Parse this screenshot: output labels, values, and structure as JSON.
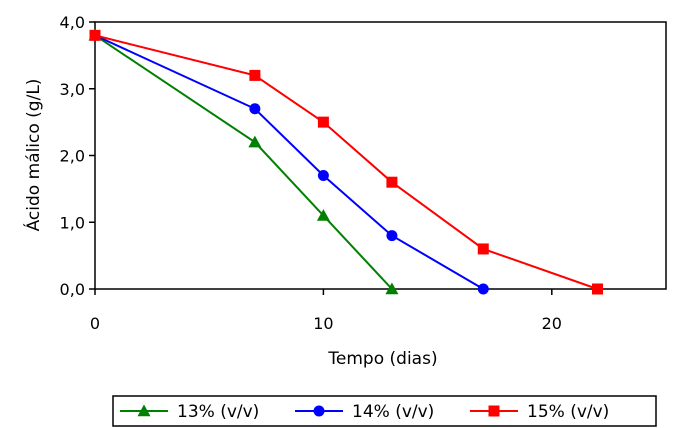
{
  "chart_data": {
    "type": "line",
    "title": "",
    "xlabel": "Tempo (dias)",
    "ylabel": "Ácido málico (g/L)",
    "xlim": [
      0,
      25
    ],
    "ylim": [
      0,
      4
    ],
    "x_ticks": [
      0,
      10,
      20
    ],
    "x_tick_labels": [
      "0",
      "10",
      "20"
    ],
    "y_ticks": [
      0,
      1,
      2,
      3,
      4
    ],
    "y_tick_labels": [
      "0,0",
      "1,0",
      "2,0",
      "3,0",
      "4,0"
    ],
    "grid": false,
    "legend_position": "bottom",
    "series": [
      {
        "name": "13% (v/v)",
        "color": "#008000",
        "marker": "triangle",
        "x": [
          0,
          7,
          10,
          13
        ],
        "y": [
          3.8,
          2.2,
          1.1,
          0.0
        ]
      },
      {
        "name": "14% (v/v)",
        "color": "#0000ff",
        "marker": "circle",
        "x": [
          0,
          7,
          10,
          13,
          17
        ],
        "y": [
          3.8,
          2.7,
          1.7,
          0.8,
          0.0
        ]
      },
      {
        "name": "15% (v/v)",
        "color": "#ff0000",
        "marker": "square",
        "x": [
          0,
          7,
          10,
          13,
          17,
          22
        ],
        "y": [
          3.8,
          3.2,
          2.5,
          1.6,
          0.6,
          0.0
        ]
      }
    ]
  }
}
